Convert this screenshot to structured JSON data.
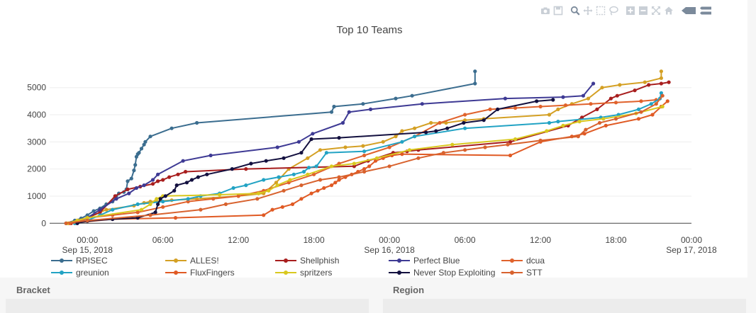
{
  "toolbar": {
    "icons": [
      "camera-icon",
      "save-icon",
      "zoom-icon",
      "pan-icon",
      "box-select-icon",
      "lasso-icon",
      "zoom-in-icon",
      "zoom-out-icon",
      "autoscale-icon",
      "home-icon",
      "spike-icon",
      "compare-icon"
    ]
  },
  "chart_data": {
    "type": "line",
    "title": "Top 10 Teams",
    "xlabel": "",
    "ylabel": "",
    "xlim": [
      -3,
      48
    ],
    "ylim": [
      -150,
      5750
    ],
    "x_units": "hours since Sep 15, 2018 00:00",
    "x_ticks": [
      {
        "h": 0,
        "line1": "00:00",
        "line2": "Sep 15, 2018"
      },
      {
        "h": 6,
        "line1": "06:00",
        "line2": ""
      },
      {
        "h": 12,
        "line1": "12:00",
        "line2": ""
      },
      {
        "h": 18,
        "line1": "18:00",
        "line2": ""
      },
      {
        "h": 24,
        "line1": "00:00",
        "line2": "Sep 16, 2018"
      },
      {
        "h": 30,
        "line1": "06:00",
        "line2": ""
      },
      {
        "h": 36,
        "line1": "12:00",
        "line2": ""
      },
      {
        "h": 42,
        "line1": "18:00",
        "line2": ""
      },
      {
        "h": 48,
        "line1": "00:00",
        "line2": "Sep 17, 2018"
      }
    ],
    "y_ticks": [
      0,
      1000,
      2000,
      3000,
      4000,
      5000
    ],
    "grid": "horizontal",
    "legend_position": "bottom",
    "series": [
      {
        "name": "RPISEC",
        "color": "#3b6d8f",
        "points": [
          [
            -1.7,
            0
          ],
          [
            -1.0,
            100
          ],
          [
            -0.5,
            180
          ],
          [
            0,
            300
          ],
          [
            0.5,
            450
          ],
          [
            1.0,
            550
          ],
          [
            1.5,
            700
          ],
          [
            2.0,
            800
          ],
          [
            2.3,
            1000
          ],
          [
            2.5,
            1100
          ],
          [
            2.9,
            1150
          ],
          [
            3.1,
            1250
          ],
          [
            3.2,
            1550
          ],
          [
            3.5,
            1650
          ],
          [
            3.7,
            1950
          ],
          [
            3.8,
            2150
          ],
          [
            3.9,
            2450
          ],
          [
            4.0,
            2550
          ],
          [
            4.1,
            2600
          ],
          [
            4.3,
            2750
          ],
          [
            4.5,
            2900
          ],
          [
            4.6,
            3000
          ],
          [
            5.0,
            3200
          ],
          [
            6.7,
            3500
          ],
          [
            8.7,
            3700
          ],
          [
            19.4,
            4100
          ],
          [
            19.6,
            4300
          ],
          [
            21.9,
            4400
          ],
          [
            24.5,
            4600
          ],
          [
            25.8,
            4700
          ],
          [
            30.8,
            5150
          ],
          [
            30.8,
            5600
          ]
        ]
      },
      {
        "name": "ALLES!",
        "color": "#d4a024",
        "points": [
          [
            -1.0,
            0
          ],
          [
            -0.5,
            100
          ],
          [
            0,
            200
          ],
          [
            1.5,
            500
          ],
          [
            3.7,
            650
          ],
          [
            4.5,
            750
          ],
          [
            5.0,
            800
          ],
          [
            6.7,
            850
          ],
          [
            8.7,
            900
          ],
          [
            12.0,
            1000
          ],
          [
            14.0,
            1100
          ],
          [
            15.0,
            1500
          ],
          [
            16.0,
            2000
          ],
          [
            17.5,
            2400
          ],
          [
            18.5,
            2700
          ],
          [
            20.5,
            2800
          ],
          [
            21.9,
            2850
          ],
          [
            23.5,
            3000
          ],
          [
            24.5,
            3200
          ],
          [
            25.0,
            3400
          ],
          [
            26.0,
            3500
          ],
          [
            27.3,
            3700
          ],
          [
            28.5,
            3700
          ],
          [
            30.0,
            3800
          ],
          [
            31.5,
            3850
          ],
          [
            36.7,
            4000
          ],
          [
            37.4,
            4200
          ],
          [
            38.5,
            4400
          ],
          [
            39.8,
            4600
          ],
          [
            40.9,
            5000
          ],
          [
            42.3,
            5100
          ],
          [
            44.3,
            5200
          ],
          [
            45.6,
            5350
          ],
          [
            45.6,
            5600
          ]
        ]
      },
      {
        "name": "Shellphish",
        "color": "#a81e1e",
        "points": [
          [
            -1.3,
            0
          ],
          [
            -0.8,
            100
          ],
          [
            0,
            200
          ],
          [
            1.0,
            400
          ],
          [
            2.2,
            1000
          ],
          [
            3.2,
            1250
          ],
          [
            4.2,
            1350
          ],
          [
            5.2,
            1450
          ],
          [
            5.6,
            1550
          ],
          [
            6.0,
            1600
          ],
          [
            6.5,
            1700
          ],
          [
            7.2,
            1800
          ],
          [
            7.8,
            1900
          ],
          [
            12.6,
            2000
          ],
          [
            21.2,
            2100
          ],
          [
            22.3,
            2300
          ],
          [
            24.3,
            2600
          ],
          [
            25.4,
            2650
          ],
          [
            26.3,
            2700
          ],
          [
            33.6,
            3000
          ],
          [
            38.2,
            3600
          ],
          [
            39.3,
            3900
          ],
          [
            40.5,
            4200
          ],
          [
            41.6,
            4600
          ],
          [
            42.1,
            4700
          ],
          [
            43.5,
            4900
          ],
          [
            44.6,
            5100
          ],
          [
            45.6,
            5150
          ],
          [
            46.2,
            5200
          ]
        ]
      },
      {
        "name": "Perfect Blue",
        "color": "#3e3a94",
        "points": [
          [
            -0.8,
            0
          ],
          [
            0,
            200
          ],
          [
            1.0,
            500
          ],
          [
            2.3,
            900
          ],
          [
            3.3,
            1100
          ],
          [
            3.9,
            1300
          ],
          [
            4.5,
            1400
          ],
          [
            5.2,
            1600
          ],
          [
            5.6,
            1800
          ],
          [
            7.6,
            2300
          ],
          [
            9.8,
            2500
          ],
          [
            15.1,
            2800
          ],
          [
            16.8,
            3000
          ],
          [
            17.9,
            3300
          ],
          [
            20.3,
            3700
          ],
          [
            20.8,
            4100
          ],
          [
            22.5,
            4200
          ],
          [
            26.6,
            4400
          ],
          [
            33.2,
            4600
          ],
          [
            37.8,
            4650
          ],
          [
            39.4,
            4700
          ],
          [
            40.2,
            5150
          ]
        ]
      },
      {
        "name": "dcua",
        "color": "#e0622c",
        "points": [
          [
            -1.5,
            0
          ],
          [
            -0.5,
            100
          ],
          [
            0,
            200
          ],
          [
            2.0,
            300
          ],
          [
            4.0,
            400
          ],
          [
            6.0,
            600
          ],
          [
            8.0,
            800
          ],
          [
            10.0,
            900
          ],
          [
            12.0,
            1000
          ],
          [
            14.0,
            1200
          ],
          [
            16.0,
            1500
          ],
          [
            18.0,
            1800
          ],
          [
            20.0,
            2200
          ],
          [
            22.0,
            2500
          ],
          [
            24.0,
            2800
          ],
          [
            26.0,
            3200
          ],
          [
            28.0,
            3700
          ],
          [
            30.0,
            4000
          ],
          [
            32.0,
            4200
          ],
          [
            34.0,
            4250
          ],
          [
            36.0,
            4300
          ],
          [
            38.0,
            4350
          ],
          [
            40.0,
            4400
          ],
          [
            42.0,
            4450
          ],
          [
            44.0,
            4500
          ],
          [
            45.2,
            4550
          ]
        ]
      },
      {
        "name": "greunion",
        "color": "#22a3c4",
        "points": [
          [
            -1.0,
            0
          ],
          [
            0,
            100
          ],
          [
            1.0,
            300
          ],
          [
            2.0,
            500
          ],
          [
            4.0,
            700
          ],
          [
            6.0,
            800
          ],
          [
            8.0,
            900
          ],
          [
            9.0,
            1000
          ],
          [
            10.5,
            1100
          ],
          [
            11.6,
            1300
          ],
          [
            12.6,
            1400
          ],
          [
            14.0,
            1600
          ],
          [
            15.2,
            1700
          ],
          [
            16.4,
            1800
          ],
          [
            17.2,
            1900
          ],
          [
            17.6,
            2050
          ],
          [
            18.2,
            2100
          ],
          [
            19.0,
            2600
          ],
          [
            22.0,
            2650
          ],
          [
            25.0,
            3000
          ],
          [
            26.0,
            3200
          ],
          [
            30.0,
            3500
          ],
          [
            36.7,
            3700
          ],
          [
            37.4,
            3750
          ],
          [
            40.8,
            3900
          ],
          [
            42.2,
            4000
          ],
          [
            43.8,
            4200
          ],
          [
            44.8,
            4400
          ],
          [
            45.5,
            4600
          ],
          [
            45.6,
            4800
          ]
        ]
      },
      {
        "name": "FluxFingers",
        "color": "#e05a24",
        "points": [
          [
            -1.4,
            0
          ],
          [
            2.0,
            150
          ],
          [
            7.0,
            200
          ],
          [
            14.0,
            300
          ],
          [
            14.7,
            500
          ],
          [
            15.5,
            600
          ],
          [
            16.3,
            700
          ],
          [
            17.0,
            900
          ],
          [
            17.8,
            1100
          ],
          [
            18.3,
            1200
          ],
          [
            18.8,
            1300
          ],
          [
            19.4,
            1400
          ],
          [
            19.7,
            1500
          ],
          [
            20.0,
            1600
          ],
          [
            20.5,
            1700
          ],
          [
            21.0,
            1800
          ],
          [
            21.5,
            1900
          ],
          [
            22.0,
            2000
          ],
          [
            22.4,
            2100
          ],
          [
            22.9,
            2300
          ],
          [
            23.5,
            2400
          ],
          [
            24.2,
            2500
          ],
          [
            25.0,
            2550
          ],
          [
            33.6,
            2500
          ],
          [
            36.0,
            3000
          ],
          [
            38.5,
            3200
          ],
          [
            39.5,
            3300
          ],
          [
            41.2,
            3600
          ],
          [
            43.8,
            3850
          ],
          [
            44.9,
            4000
          ],
          [
            45.6,
            4300
          ],
          [
            46.1,
            4500
          ]
        ]
      },
      {
        "name": "spritzers",
        "color": "#d9c81f",
        "points": [
          [
            -1.6,
            0
          ],
          [
            -0.8,
            100
          ],
          [
            0,
            200
          ],
          [
            4.3,
            500
          ],
          [
            5.0,
            700
          ],
          [
            5.5,
            900
          ],
          [
            6.0,
            1000
          ],
          [
            10.5,
            1050
          ],
          [
            13.6,
            1100
          ],
          [
            14.4,
            1200
          ],
          [
            15.1,
            1400
          ],
          [
            16.1,
            1600
          ],
          [
            17.5,
            1800
          ],
          [
            19.4,
            2100
          ],
          [
            21.2,
            2200
          ],
          [
            23.0,
            2400
          ],
          [
            25.6,
            2700
          ],
          [
            29.0,
            2900
          ],
          [
            34.0,
            3100
          ],
          [
            36.5,
            3400
          ],
          [
            37.8,
            3600
          ],
          [
            39.1,
            3750
          ],
          [
            41.0,
            3850
          ],
          [
            43.6,
            4050
          ],
          [
            45.7,
            4300
          ]
        ]
      },
      {
        "name": "Never Stop Exploiting",
        "color": "#13103f",
        "points": [
          [
            -0.8,
            0
          ],
          [
            0,
            80
          ],
          [
            2.0,
            150
          ],
          [
            4.0,
            200
          ],
          [
            5.4,
            400
          ],
          [
            5.6,
            700
          ],
          [
            5.8,
            900
          ],
          [
            6.2,
            1000
          ],
          [
            6.9,
            1200
          ],
          [
            7.1,
            1400
          ],
          [
            7.9,
            1500
          ],
          [
            8.3,
            1600
          ],
          [
            8.8,
            1700
          ],
          [
            9.5,
            1800
          ],
          [
            11.5,
            2000
          ],
          [
            13.0,
            2200
          ],
          [
            14.2,
            2300
          ],
          [
            15.6,
            2400
          ],
          [
            17.0,
            2600
          ],
          [
            17.8,
            3100
          ],
          [
            20.0,
            3150
          ],
          [
            26.9,
            3350
          ],
          [
            27.7,
            3400
          ],
          [
            28.6,
            3500
          ],
          [
            29.9,
            3700
          ],
          [
            31.5,
            3800
          ],
          [
            32.6,
            4200
          ],
          [
            35.7,
            4500
          ],
          [
            37.0,
            4550
          ]
        ]
      },
      {
        "name": "STT",
        "color": "#d8622e",
        "points": [
          [
            -1.7,
            0
          ],
          [
            0,
            100
          ],
          [
            5.0,
            300
          ],
          [
            9.0,
            500
          ],
          [
            11.0,
            700
          ],
          [
            13.5,
            900
          ],
          [
            15.6,
            1200
          ],
          [
            17.0,
            1400
          ],
          [
            18.5,
            1600
          ],
          [
            20.0,
            1700
          ],
          [
            22.0,
            1900
          ],
          [
            24.0,
            2100
          ],
          [
            26.3,
            2400
          ],
          [
            28.3,
            2600
          ],
          [
            30.0,
            2700
          ],
          [
            31.6,
            2800
          ],
          [
            33.4,
            2900
          ],
          [
            36.0,
            3050
          ],
          [
            39.0,
            3200
          ],
          [
            39.6,
            3450
          ],
          [
            40.7,
            3700
          ],
          [
            42.0,
            3850
          ],
          [
            44.0,
            4100
          ],
          [
            45.2,
            4400
          ],
          [
            45.7,
            4700
          ]
        ]
      }
    ]
  },
  "sections": {
    "bracket": "Bracket",
    "region": "Region"
  }
}
